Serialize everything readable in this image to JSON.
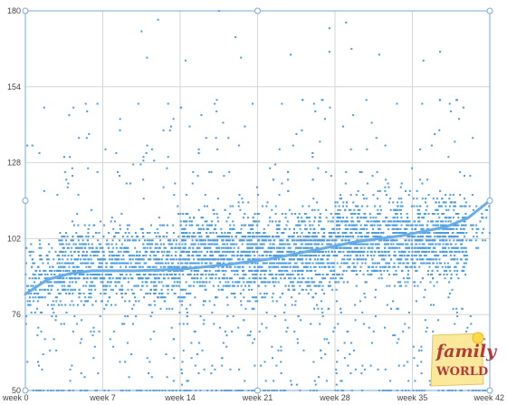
{
  "chart_data": {
    "type": "scatter",
    "title": "",
    "xlabel": "",
    "ylabel": "",
    "x_ticks": [
      "week 0",
      "week 7",
      "week 14",
      "week 21",
      "week 28",
      "week 35",
      "week 42"
    ],
    "x_tick_values": [
      0,
      7,
      14,
      21,
      28,
      35,
      42
    ],
    "y_ticks": [
      "50",
      "76",
      "102",
      "128",
      "154",
      "180"
    ],
    "y_tick_values": [
      50,
      76,
      102,
      128,
      154,
      180
    ],
    "xlim": [
      0,
      42
    ],
    "ylim": [
      50,
      180
    ],
    "grid": true,
    "legend": "none",
    "point_color": "#4a9be0",
    "trend_color": "#6aaee8",
    "series": [
      {
        "type": "scatter",
        "description_count": "approx. 9000 points, dense band 80-115 widening after week 4, outliers 130-180",
        "density_profile": [
          {
            "x_from": 0,
            "x_to": 3,
            "center": 88,
            "spread": 10,
            "weight": 0.6
          },
          {
            "x_from": 3,
            "x_to": 14,
            "center": 93,
            "spread": 11,
            "weight": 1.0
          },
          {
            "x_from": 14,
            "x_to": 28,
            "center": 97,
            "spread": 12,
            "weight": 1.3
          },
          {
            "x_from": 28,
            "x_to": 40,
            "center": 102,
            "spread": 12,
            "weight": 1.2
          },
          {
            "x_from": 40,
            "x_to": 42,
            "center": 108,
            "spread": 8,
            "weight": 0.2
          }
        ],
        "outliers": [
          {
            "x": 17.5,
            "y": 180
          },
          {
            "x": 12,
            "y": 177
          },
          {
            "x": 10.5,
            "y": 173
          },
          {
            "x": 27.5,
            "y": 174
          },
          {
            "x": 29,
            "y": 176
          },
          {
            "x": 19,
            "y": 171
          },
          {
            "x": 11,
            "y": 164
          },
          {
            "x": 14.5,
            "y": 163
          },
          {
            "x": 19.5,
            "y": 164
          },
          {
            "x": 24,
            "y": 165
          },
          {
            "x": 36,
            "y": 163
          },
          {
            "x": 27.5,
            "y": 166
          },
          {
            "x": 32,
            "y": 165
          },
          {
            "x": 29.5,
            "y": 167
          },
          {
            "x": 37.5,
            "y": 166
          }
        ]
      },
      {
        "type": "line",
        "name": "",
        "x": [
          0,
          2,
          4,
          6,
          8,
          10,
          14,
          18,
          22,
          26,
          30,
          34,
          38,
          40,
          42
        ],
        "y": [
          83,
          88,
          90,
          91,
          91,
          91,
          91.5,
          93,
          95,
          98,
          101,
          103,
          106,
          109,
          115
        ]
      }
    ]
  },
  "logo": {
    "line1": "family",
    "line2": "WORLD"
  }
}
